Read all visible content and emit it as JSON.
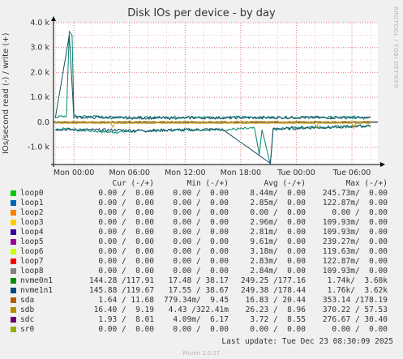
{
  "chart_data": {
    "type": "line",
    "title": "Disk IOs per device - by day",
    "ylabel": "IOs/second read (-) / write (+)",
    "side_credit": "RRDTOOL / TOBI OETIKER",
    "y_ticks": [
      "4.0 k",
      "3.0 k",
      "2.0 k",
      "1.0 k",
      "0.0",
      "-1.0 k"
    ],
    "y_tick_values": [
      4000,
      3000,
      2000,
      1000,
      0,
      -1000
    ],
    "ylim": [
      -1700,
      4000
    ],
    "x_ticks": [
      "Mon 00:00",
      "Mon 06:00",
      "Mon 12:00",
      "Mon 18:00",
      "Tue 00:00",
      "Tue 06:00"
    ],
    "x_tick_hours": [
      0,
      6,
      12,
      18,
      24,
      30
    ],
    "xlim_hours": [
      -2.2,
      32.8
    ],
    "grid": true,
    "series": [
      {
        "name": "nvme0n1",
        "color": "#00896e",
        "write": [
          [
            -2.0,
            200
          ],
          [
            -0.8,
            250
          ],
          [
            -0.5,
            3650
          ],
          [
            -0.2,
            3500
          ],
          [
            0.0,
            250
          ],
          [
            4,
            200
          ],
          [
            8,
            180
          ],
          [
            12,
            200
          ],
          [
            16,
            190
          ],
          [
            18,
            200
          ],
          [
            20,
            180
          ],
          [
            24,
            200
          ],
          [
            28,
            190
          ],
          [
            32,
            200
          ]
        ],
        "read": [
          [
            -2.0,
            -300
          ],
          [
            -0.8,
            -250
          ],
          [
            0,
            -300
          ],
          [
            4,
            -400
          ],
          [
            8,
            -350
          ],
          [
            12,
            -300
          ],
          [
            16,
            -300
          ],
          [
            19.5,
            -250
          ],
          [
            20.0,
            -1300
          ],
          [
            20.3,
            -300
          ],
          [
            21.2,
            -1700
          ],
          [
            21.5,
            -300
          ],
          [
            24,
            -200
          ],
          [
            28,
            -200
          ],
          [
            32,
            -150
          ]
        ]
      },
      {
        "name": "nvme1n1",
        "color": "#134f65",
        "write": [
          [
            -2.0,
            180
          ],
          [
            -0.5,
            3500
          ],
          [
            0.0,
            200
          ],
          [
            8,
            170
          ],
          [
            16,
            180
          ],
          [
            24,
            190
          ],
          [
            32,
            180
          ]
        ],
        "read": [
          [
            -2.0,
            -280
          ],
          [
            0,
            -300
          ],
          [
            8,
            -330
          ],
          [
            16,
            -280
          ],
          [
            21.2,
            -1650
          ],
          [
            21.5,
            -280
          ],
          [
            32,
            -140
          ]
        ]
      },
      {
        "name": "sdb",
        "color": "#cc9c16",
        "write": [
          [
            -2,
            20
          ],
          [
            32,
            20
          ]
        ],
        "read": [
          [
            -2,
            -40
          ],
          [
            4.0,
            -40
          ],
          [
            4.2,
            -200
          ],
          [
            4.4,
            -40
          ],
          [
            26.0,
            -40
          ],
          [
            26.2,
            -220
          ],
          [
            26.4,
            -40
          ],
          [
            30.0,
            -40
          ],
          [
            30.2,
            -230
          ],
          [
            30.4,
            -40
          ],
          [
            32,
            -40
          ]
        ]
      }
    ]
  },
  "legend": {
    "headers": {
      "cur": "Cur (-/+)",
      "min": "Min (-/+)",
      "avg": "Avg (-/+)",
      "max": "Max (-/+)"
    },
    "rows": [
      {
        "name": "loop0",
        "color": "#00cc00",
        "cur": "0.00 /  0.00",
        "min": "0.00 /  0.00",
        "avg": "8.44m/  0.00",
        "max": "245.73m/  0.00"
      },
      {
        "name": "loop1",
        "color": "#0066b3",
        "cur": "0.00 /  0.00",
        "min": "0.00 /  0.00",
        "avg": "2.85m/  0.00",
        "max": "122.87m/  0.00"
      },
      {
        "name": "loop2",
        "color": "#ff8000",
        "cur": "0.00 /  0.00",
        "min": "0.00 /  0.00",
        "avg": "0.00 /  0.00",
        "max": "0.00 /  0.00"
      },
      {
        "name": "loop3",
        "color": "#ffcc00",
        "cur": "0.00 /  0.00",
        "min": "0.00 /  0.00",
        "avg": "2.96m/  0.00",
        "max": "109.93m/  0.00"
      },
      {
        "name": "loop4",
        "color": "#330099",
        "cur": "0.00 /  0.00",
        "min": "0.00 /  0.00",
        "avg": "2.81m/  0.00",
        "max": "109.93m/  0.00"
      },
      {
        "name": "loop5",
        "color": "#990099",
        "cur": "0.00 /  0.00",
        "min": "0.00 /  0.00",
        "avg": "9.61m/  0.00",
        "max": "239.27m/  0.00"
      },
      {
        "name": "loop6",
        "color": "#ccff00",
        "cur": "0.00 /  0.00",
        "min": "0.00 /  0.00",
        "avg": "3.18m/  0.00",
        "max": "119.63m/  0.00"
      },
      {
        "name": "loop7",
        "color": "#ff0000",
        "cur": "0.00 /  0.00",
        "min": "0.00 /  0.00",
        "avg": "2.83m/  0.00",
        "max": "122.87m/  0.00"
      },
      {
        "name": "loop8",
        "color": "#808080",
        "cur": "0.00 /  0.00",
        "min": "0.00 /  0.00",
        "avg": "2.84m/  0.00",
        "max": "109.93m/  0.00"
      },
      {
        "name": "nvme0n1",
        "color": "#008f00",
        "cur": "144.28 /117.91",
        "min": "17.48 / 38.17",
        "avg": "249.25 /177.16",
        "max": "1.74k/  3.60k"
      },
      {
        "name": "nvme1n1",
        "color": "#00487d",
        "cur": "145.88 /119.67",
        "min": "17.55 / 38.67",
        "avg": "249.38 /178.44",
        "max": "1.76k/  3.62k"
      },
      {
        "name": "sda",
        "color": "#b35a00",
        "cur": "1.64 / 11.68",
        "min": "779.34m/  9.45",
        "avg": "16.83 / 20.44",
        "max": "353.14 /178.19"
      },
      {
        "name": "sdb",
        "color": "#b38f00",
        "cur": "16.40 /  9.19",
        "min": "4.43 /322.41m",
        "avg": "26.23 /  8.96",
        "max": "370.22 / 57.53"
      },
      {
        "name": "sdc",
        "color": "#6b006b",
        "cur": "1.93 /  8.01",
        "min": "4.09m/  6.17",
        "avg": "3.72 /  8.55",
        "max": "276.67 / 30.40"
      },
      {
        "name": "sr0",
        "color": "#8fb300",
        "cur": "0.00 /  0.00",
        "min": "0.00 /  0.00",
        "avg": "0.00 /  0.00",
        "max": "0.00 /  0.00"
      }
    ]
  },
  "footer": {
    "last_update": "Last update: Tue Dec 23 08:30:09 2025",
    "munin": "Munin 2.0.57"
  }
}
